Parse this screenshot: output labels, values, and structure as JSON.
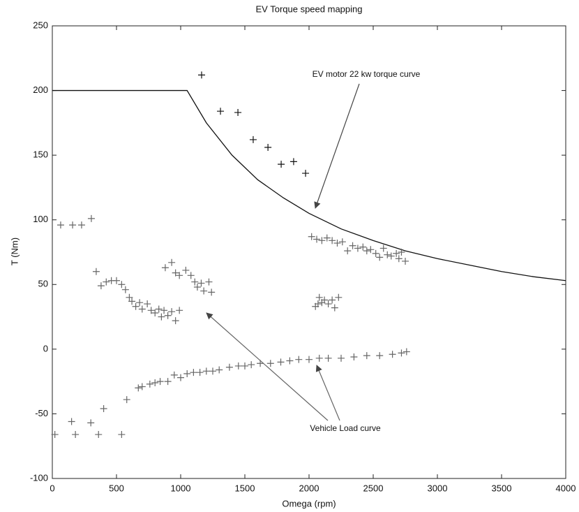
{
  "chart_data": {
    "type": "scatter",
    "title": "EV Torque speed mapping",
    "x_label": "Omega (rpm)",
    "y_label": "T (Nm)",
    "xlim": [
      0,
      4000
    ],
    "xticks": [
      0,
      500,
      1000,
      1500,
      2000,
      2500,
      3000,
      3500,
      4000
    ],
    "ylim": [
      -100,
      250
    ],
    "yticks": [
      -100,
      -50,
      0,
      50,
      100,
      150,
      200,
      250
    ],
    "annotations": [
      "EV motor 22 kw torque curve",
      "Vehicle Load curve"
    ],
    "series": [
      {
        "style": "line",
        "color": "#111111",
        "x": [
          0,
          1050,
          1200,
          1400,
          1600,
          1800,
          2000,
          2250,
          2500,
          2750,
          3000,
          3250,
          3500,
          3750,
          4000
        ],
        "values": [
          200,
          200,
          175,
          150,
          131,
          117,
          105,
          93,
          84,
          76,
          70,
          65,
          60,
          56,
          53
        ]
      },
      {
        "style": "plus",
        "color": "#111111",
        "x": [
          1163,
          1310,
          1446,
          1565,
          1680,
          1783,
          1880,
          1973
        ],
        "values": [
          212,
          184,
          183,
          162,
          156,
          143,
          145,
          136
        ]
      },
      {
        "style": "plus",
        "color": "#666666",
        "x": [
          65,
          158,
          228,
          304,
          342,
          380,
          420,
          460,
          500,
          540,
          570,
          600,
          620,
          650,
          680,
          700,
          740,
          770,
          800,
          830,
          850,
          870,
          900,
          930,
          960,
          990,
          880,
          930,
          960,
          990,
          1040,
          1080,
          1110,
          1130,
          1160,
          1180,
          1220,
          1240,
          2020,
          2060,
          2100,
          2140,
          2180,
          2220,
          2260,
          2300,
          2340,
          2380,
          2420,
          2450,
          2480,
          2520,
          2550,
          2580,
          2610,
          2640,
          2680,
          2700,
          2720,
          2750,
          2050,
          2070,
          2080,
          2100,
          2120,
          2150,
          2180,
          2200,
          2230,
          400,
          580,
          670,
          700,
          760,
          800,
          840,
          900,
          950,
          1000,
          1050,
          1100,
          1150,
          1200,
          1250,
          1300,
          1380,
          1450,
          1500,
          1550,
          1620,
          1700,
          1780,
          1850,
          1920,
          2000,
          2080,
          2150,
          2250,
          2350,
          2450,
          2550,
          2650,
          2720,
          2760,
          20,
          150,
          180,
          300,
          360,
          540
        ],
        "values": [
          96,
          96,
          96,
          101,
          60,
          49,
          52,
          53,
          53,
          50,
          46,
          40,
          37,
          33,
          36,
          31,
          35,
          30,
          28,
          31,
          25,
          30,
          26,
          29,
          22,
          30,
          63,
          67,
          59,
          57,
          61,
          57,
          52,
          48,
          51,
          45,
          52,
          44,
          87,
          85,
          84,
          86,
          84,
          82,
          83,
          76,
          80,
          78,
          79,
          76,
          77,
          74,
          71,
          78,
          73,
          72,
          74,
          70,
          75,
          68,
          33,
          35,
          40,
          36,
          38,
          35,
          38,
          32,
          40,
          -46,
          -39,
          -30,
          -29,
          -27,
          -26,
          -25,
          -25,
          -20,
          -22,
          -19,
          -18,
          -18,
          -17,
          -17,
          -16,
          -14,
          -13,
          -13,
          -12,
          -11,
          -11,
          -10,
          -9,
          -8,
          -8,
          -7,
          -7,
          -7,
          -6,
          -5,
          -5,
          -4,
          -3,
          -2,
          -66,
          -56,
          -66,
          -57,
          -66,
          -66
        ]
      }
    ]
  }
}
